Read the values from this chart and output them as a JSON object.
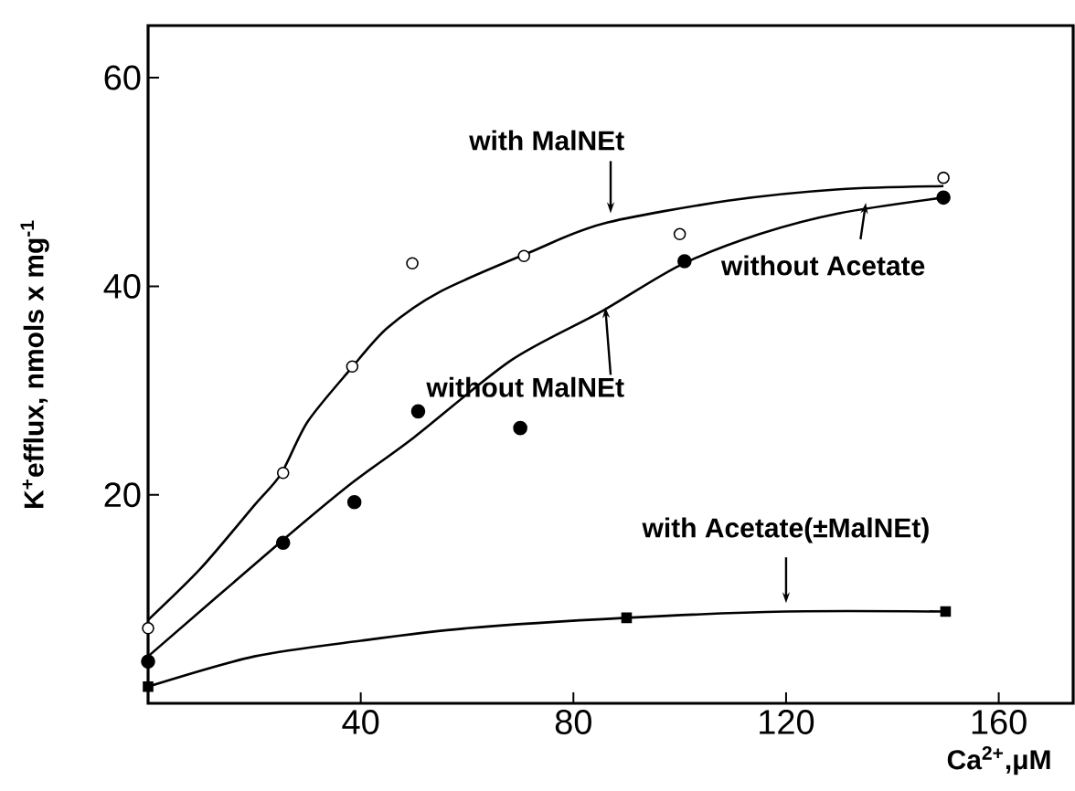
{
  "chart_data": {
    "type": "scatter",
    "xlabel": "Ca$^{2+}$,μM",
    "ylabel": "K$^{+}$efflux, nmols x mg$^{-1}$",
    "xlim": [
      0,
      174
    ],
    "ylim": [
      0,
      65
    ],
    "xticks": [
      40,
      80,
      120,
      160
    ],
    "yticks": [
      20,
      40,
      60
    ],
    "series": [
      {
        "marker": "circle",
        "color": "#000000",
        "x": [
          0,
          25.4,
          38.4,
          49.7,
          70.7,
          100,
          149.6
        ],
        "values": [
          7.2,
          22.1,
          32.3,
          42.2,
          42.9,
          45,
          50.4
        ]
      },
      {
        "marker": "circle",
        "color": "#000000",
        "x": [
          0,
          25.4,
          38.8,
          50.8,
          70,
          100.9,
          149.6
        ],
        "values": [
          4,
          15.4,
          19.3,
          28,
          26.4,
          42.4,
          48.5
        ]
      },
      {
        "marker": "square",
        "color": "#000000",
        "x": [
          0,
          90,
          150
        ],
        "values": [
          1.6,
          8.2,
          8.8
        ]
      },
      {
        "type": "line",
        "color": "#000000",
        "x": [
          0,
          10,
          20,
          25,
          30,
          38,
          45,
          55,
          72,
          85.5,
          109,
          130,
          149.6
        ],
        "values": [
          8,
          13,
          19,
          22,
          27,
          32,
          36,
          39.5,
          43.3,
          46,
          48.2,
          49.3,
          49.6
        ]
      },
      {
        "type": "line",
        "color": "#000000",
        "x": [
          0,
          25,
          38,
          50,
          68.3,
          85,
          100,
          115,
          130,
          149.6
        ],
        "values": [
          4.5,
          15.5,
          21,
          25.5,
          32.9,
          37.5,
          42,
          45,
          47,
          48.5
        ]
      },
      {
        "type": "line",
        "color": "#000000",
        "x": [
          0,
          20,
          40,
          60,
          90,
          120,
          150
        ],
        "values": [
          1.6,
          4.5,
          6,
          7.2,
          8.2,
          8.8,
          8.8
        ]
      }
    ],
    "annotations": [
      {
        "text": "with MalNEt",
        "x": 87,
        "y": 47
      },
      {
        "text": "without MalNEt",
        "x": 86,
        "y": 38
      },
      {
        "text": "without Acetate",
        "x": 135,
        "y": 48
      },
      {
        "text": "with Acetate(±MalNEt)",
        "x": 120,
        "y": 9.6
      }
    ]
  }
}
